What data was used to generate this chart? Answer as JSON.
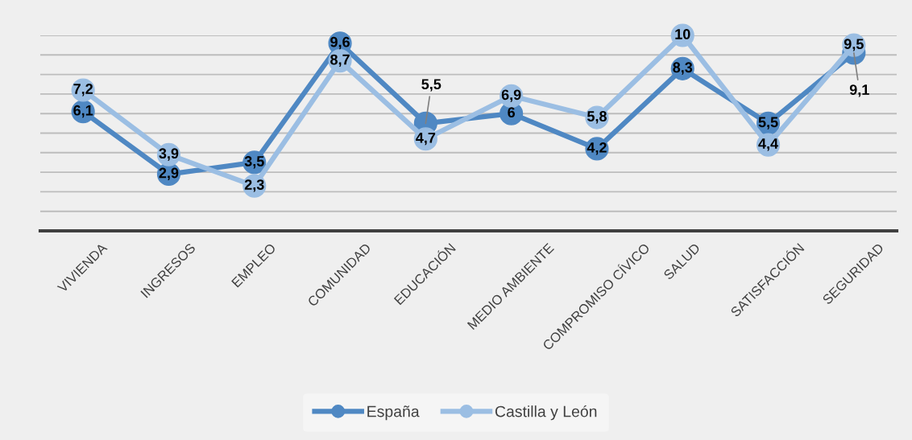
{
  "chart_data": {
    "type": "line",
    "categories": [
      "VIVIENDA",
      "INGRESOS",
      "EMPLEO",
      "COMUNIDAD",
      "EDUCACIÓN",
      "MEDIO AMBIENTE",
      "COMPROMISO CÍVICO",
      "SALUD",
      "SATISFACCIÓN",
      "SEGURIDAD"
    ],
    "series": [
      {
        "name": "España",
        "color": "#4f88c3",
        "values": [
          6.1,
          2.9,
          3.5,
          9.6,
          5.5,
          6,
          4.2,
          8.3,
          5.5,
          9.1
        ],
        "value_labels": [
          "6,1",
          "2,9",
          "3,5",
          "9,6",
          "5,5",
          "6",
          "4,2",
          "8,3",
          "5,5",
          "9,1"
        ]
      },
      {
        "name": "Castilla y León",
        "color": "#9bbee3",
        "values": [
          7.2,
          3.9,
          2.3,
          8.7,
          4.7,
          6.9,
          5.8,
          10,
          4.4,
          9.5
        ],
        "value_labels": [
          "7,2",
          "3,9",
          "2,3",
          "8,7",
          "4,7",
          "6,9",
          "5,8",
          "10",
          "4,4",
          "9,5"
        ]
      }
    ],
    "tick_labels": "x",
    "grid": "y",
    "legend": "bottom",
    "marker": "circle",
    "line_style": "solid"
  }
}
